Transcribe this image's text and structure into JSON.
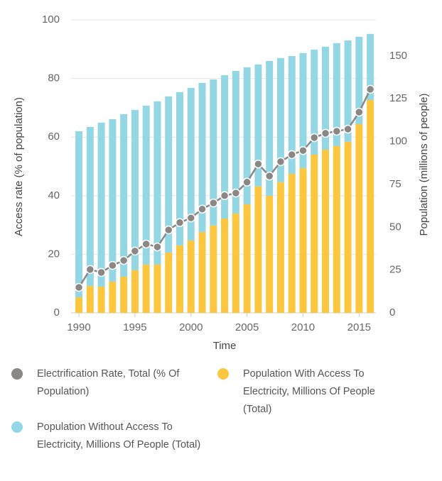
{
  "chart_data": {
    "type": "bar",
    "stacked": true,
    "x": [
      1990,
      1991,
      1992,
      1993,
      1994,
      1995,
      1996,
      1997,
      1998,
      1999,
      2000,
      2001,
      2002,
      2003,
      2004,
      2005,
      2006,
      2007,
      2008,
      2009,
      2010,
      2011,
      2012,
      2013,
      2014,
      2015,
      2016
    ],
    "xlim": [
      1989.3,
      2016.5
    ],
    "xticks": [
      1990,
      1995,
      2000,
      2005,
      2010,
      2015
    ],
    "ylim": [
      0,
      100
    ],
    "yticks": [
      0,
      20,
      40,
      60,
      80,
      100
    ],
    "y2lim": [
      0,
      171.1
    ],
    "y2ticks": [
      0,
      25,
      50,
      75,
      100,
      125,
      150
    ],
    "xlabel": "Time",
    "ylabel": "Access rate (% of population)",
    "y2label": "Population (millions of people)",
    "grid": true,
    "series": [
      {
        "name": "Electrification Rate, Total (% Of Population)",
        "type": "line",
        "color": "#8a8785",
        "values": [
          8.7,
          14.8,
          13.8,
          16.2,
          17.9,
          21.1,
          23.5,
          22.5,
          28.3,
          30.8,
          32.4,
          35.4,
          37.5,
          40.0,
          40.9,
          44.6,
          50.8,
          46.7,
          51.6,
          54.0,
          55.4,
          59.8,
          61.3,
          62.0,
          62.7,
          68.5,
          76.3
        ]
      },
      {
        "name": "Population With Access To Electricity, Millions Of People (Total)",
        "type": "bar",
        "axis": "y2",
        "color": "#fcc63f",
        "values": [
          9.1,
          15.7,
          15.3,
          18.2,
          21.1,
          24.9,
          28.2,
          28.2,
          35.2,
          39.4,
          42.3,
          47.2,
          51.0,
          55.1,
          58.0,
          63.4,
          73.8,
          68.4,
          76.3,
          81.2,
          84.5,
          92.4,
          95.3,
          97.4,
          99.9,
          110.2,
          124.3
        ]
      },
      {
        "name": "Population Without Access To Electricity, Millions Of People (Total)",
        "type": "bar",
        "axis": "y2",
        "color": "#93d6e4",
        "values": [
          97.0,
          92.9,
          95.8,
          94.9,
          94.9,
          93.6,
          92.8,
          95.3,
          91.2,
          89.5,
          89.1,
          87.1,
          85.3,
          83.7,
          83.3,
          80.0,
          71.2,
          78.7,
          72.5,
          68.8,
          67.2,
          61.3,
          60.1,
          60.1,
          59.2,
          51.0,
          38.6
        ]
      }
    ]
  }
}
